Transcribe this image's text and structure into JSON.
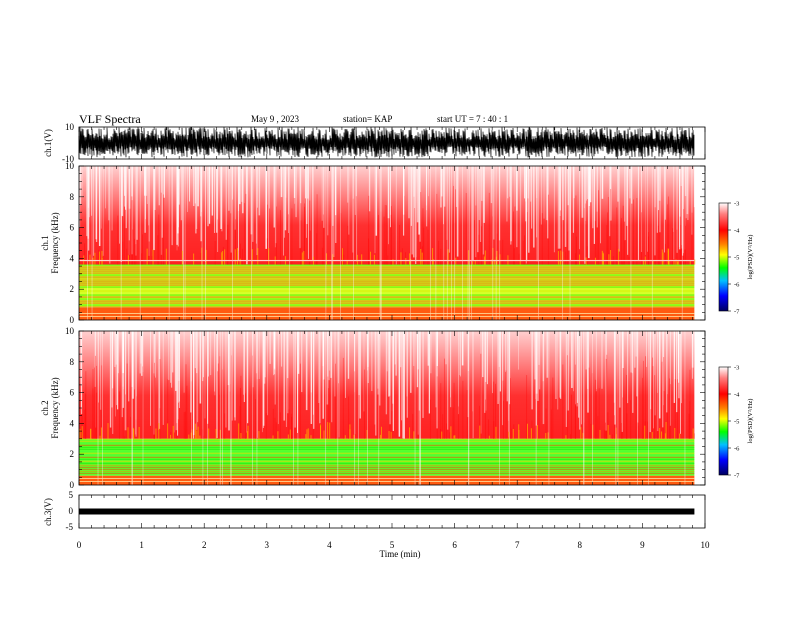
{
  "header": {
    "title": "VLF Spectra",
    "date": "May 9 , 2023",
    "station": "station= KAP",
    "start": "start UT = 7 : 40 : 1"
  },
  "chart_data": [
    {
      "type": "line",
      "panel": "ch1-waveform",
      "ylabel": "ch.1(V)",
      "ylim": [
        -10,
        10
      ],
      "y_ticks": [
        "10",
        "-10"
      ],
      "xlim": [
        0,
        10
      ],
      "description_values": {
        "signal_min_approx": -9,
        "signal_max_approx": 10,
        "data_end_min": 9.83
      }
    },
    {
      "type": "heatmap",
      "panel": "ch1-spectrogram",
      "ylabel": "ch.1\nFrequency (kHz)",
      "ylim": [
        0,
        10
      ],
      "y_ticks": [
        "0",
        "2",
        "4",
        "6",
        "8",
        "10"
      ],
      "xlim": [
        0,
        10
      ],
      "data_end_min": 9.83,
      "bands": [
        {
          "from_khz": 0.0,
          "to_khz": 0.8,
          "level": "red-yellow"
        },
        {
          "from_khz": 0.8,
          "to_khz": 3.6,
          "level": "green-yellow"
        },
        {
          "from_khz": 3.6,
          "to_khz": 10.0,
          "level": "red-white"
        }
      ],
      "line_khz": 3.9,
      "colorbar": {
        "label": "log(PSD)(V²/Hz)",
        "ticks": [
          "-3",
          "-4",
          "-5",
          "-6",
          "-7"
        ],
        "range": [
          -7,
          -3
        ]
      }
    },
    {
      "type": "heatmap",
      "panel": "ch2-spectrogram",
      "ylabel": "ch.2\nFrequency (kHz)",
      "ylim": [
        0,
        10
      ],
      "y_ticks": [
        "0",
        "2",
        "4",
        "6",
        "8",
        "10"
      ],
      "xlim": [
        0,
        10
      ],
      "data_end_min": 9.83,
      "bands": [
        {
          "from_khz": 0.0,
          "to_khz": 0.6,
          "level": "red-yellow"
        },
        {
          "from_khz": 0.6,
          "to_khz": 3.0,
          "level": "green"
        },
        {
          "from_khz": 3.0,
          "to_khz": 10.0,
          "level": "red-white"
        }
      ],
      "colorbar": {
        "label": "log(PSD)(V²/Hz)",
        "ticks": [
          "-3",
          "-4",
          "-5",
          "-6",
          "-7"
        ],
        "range": [
          -7,
          -3
        ]
      }
    },
    {
      "type": "line",
      "panel": "ch3-waveform",
      "ylabel": "ch.3(V)",
      "ylim": [
        -5,
        5
      ],
      "y_ticks": [
        "5",
        "0",
        "-5"
      ],
      "xlim": [
        0,
        10
      ],
      "level_v": 0,
      "data_end_min": 9.83
    }
  ],
  "x_axis": {
    "label": "Time (min)",
    "ticks": [
      "0",
      "1",
      "2",
      "3",
      "4",
      "5",
      "6",
      "7",
      "8",
      "9",
      "10"
    ]
  },
  "colors": {
    "waveform": "#000000",
    "spec_high": "#ff0000",
    "spec_mid": "#ffff00",
    "spec_low": "#00ff00",
    "spec_bg": "#ffffff"
  }
}
